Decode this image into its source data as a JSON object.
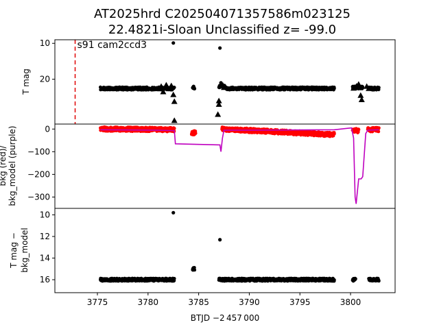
{
  "figure": {
    "title_line1": "AT2025hrd  C202504071357586m023125",
    "title_line2": "22.4821i-Sloan Unclassified z= -99.0"
  },
  "chart_data": [
    {
      "type": "scatter",
      "panel": "top",
      "ylabel": "T mag",
      "ylim": [
        32.5,
        9.0
      ],
      "yinverted": true,
      "yticks": [
        10,
        20
      ],
      "xlim": [
        3770.8,
        3804.4
      ],
      "annotation": {
        "text": "s91 cam2ccd3",
        "x": 3772.8
      },
      "sector_line_x": 3772.8,
      "series": [
        {
          "marker": "dot",
          "color": "#000000",
          "segments": [
            {
              "x0": 3775.3,
              "x1": 3781.2,
              "y": 22.6
            },
            {
              "x0": 3781.3,
              "x1": 3782.6,
              "y": 22.6
            },
            {
              "x0": 3784.4,
              "x1": 3784.6,
              "y": 22.3
            },
            {
              "x0": 3787.0,
              "x1": 3787.6,
              "y": 22.1
            },
            {
              "x0": 3787.7,
              "x1": 3798.4,
              "y": 22.6
            },
            {
              "x0": 3800.2,
              "x1": 3801.2,
              "y": 22.3
            },
            {
              "x0": 3801.8,
              "x1": 3802.8,
              "y": 22.6
            }
          ],
          "points": [
            {
              "x": 3782.5,
              "y": 9.9
            },
            {
              "x": 3787.1,
              "y": 11.3
            },
            {
              "x": 3784.5,
              "y": 22.0
            },
            {
              "x": 3787.2,
              "y": 21.0
            }
          ]
        },
        {
          "marker": "triangle",
          "color": "#000000",
          "points": [
            {
              "x": 3781.3,
              "y": 22.0
            },
            {
              "x": 3781.5,
              "y": 23.5
            },
            {
              "x": 3781.8,
              "y": 21.6
            },
            {
              "x": 3782.3,
              "y": 21.8
            },
            {
              "x": 3782.5,
              "y": 24.3
            },
            {
              "x": 3782.6,
              "y": 26.2
            },
            {
              "x": 3782.6,
              "y": 31.5
            },
            {
              "x": 3787.0,
              "y": 26.0
            },
            {
              "x": 3787.0,
              "y": 27.0
            },
            {
              "x": 3786.9,
              "y": 29.8
            },
            {
              "x": 3787.4,
              "y": 21.7
            },
            {
              "x": 3787.5,
              "y": 22.3
            },
            {
              "x": 3800.3,
              "y": 22.5
            },
            {
              "x": 3800.6,
              "y": 21.9
            },
            {
              "x": 3800.8,
              "y": 21.4
            },
            {
              "x": 3801.0,
              "y": 24.5
            },
            {
              "x": 3801.1,
              "y": 25.7
            },
            {
              "x": 3801.6,
              "y": 22.0
            },
            {
              "x": 3801.8,
              "y": 22.6
            }
          ]
        }
      ]
    },
    {
      "type": "line",
      "panel": "middle",
      "ylabel": "bkg (red)/\nbkg_model (purple)",
      "ylim": [
        -350,
        22
      ],
      "yticks": [
        0,
        -100,
        -200,
        -300
      ],
      "xlim": [
        3770.8,
        3804.4
      ],
      "series": [
        {
          "name": "bkg",
          "color": "#ff0000",
          "marker": "dot",
          "segments": [
            {
              "x0": 3775.3,
              "x1": 3781.0,
              "y0": 0,
              "y1": -2
            },
            {
              "x0": 3781.0,
              "x1": 3782.6,
              "y0": -2,
              "y1": -3
            },
            {
              "x0": 3784.3,
              "x1": 3784.7,
              "y0": -15,
              "y1": -18
            },
            {
              "x0": 3787.3,
              "x1": 3798.4,
              "y0": 0,
              "y1": -25
            },
            {
              "x0": 3800.2,
              "x1": 3800.8,
              "y0": -5,
              "y1": -8
            },
            {
              "x0": 3801.7,
              "x1": 3802.8,
              "y0": -3,
              "y1": -2
            }
          ]
        },
        {
          "name": "bkg_model",
          "color": "#bf00bf",
          "x": [
            3775.3,
            3781.0,
            3782.6,
            3782.7,
            3787.1,
            3787.2,
            3787.35,
            3787.5,
            3790,
            3795,
            3798.4,
            3800.1,
            3800.3,
            3800.45,
            3800.55,
            3800.8,
            3801.05,
            3801.2,
            3801.5,
            3801.7,
            3802.8
          ],
          "y": [
            -3,
            -5,
            -7,
            -65,
            -70,
            -100,
            -40,
            -5,
            -5,
            -4,
            -3,
            5,
            -40,
            -300,
            -330,
            -220,
            -220,
            -210,
            -20,
            -5,
            -3
          ]
        }
      ]
    },
    {
      "type": "scatter",
      "panel": "bottom",
      "ylabel": "T mag −\nbkg_model",
      "ylim": [
        17.2,
        9.4
      ],
      "yinverted": true,
      "yticks": [
        10,
        12,
        14,
        16
      ],
      "xlim": [
        3770.8,
        3804.4
      ],
      "xlabel": "BTJD −2 457 000",
      "xticks": [
        3775,
        3780,
        3785,
        3790,
        3795,
        3800
      ],
      "series": [
        {
          "marker": "dot",
          "color": "#000000",
          "segments": [
            {
              "x0": 3775.3,
              "x1": 3782.6,
              "y": 16.0
            },
            {
              "x0": 3784.4,
              "x1": 3784.6,
              "y": 15.0
            },
            {
              "x0": 3787.0,
              "x1": 3787.6,
              "y": 16.0
            },
            {
              "x0": 3787.7,
              "x1": 3798.4,
              "y": 16.0
            },
            {
              "x0": 3800.2,
              "x1": 3800.5,
              "y": 16.0
            },
            {
              "x0": 3801.8,
              "x1": 3802.8,
              "y": 16.0
            }
          ],
          "points": [
            {
              "x": 3782.5,
              "y": 9.8
            },
            {
              "x": 3787.1,
              "y": 12.3
            }
          ]
        }
      ]
    }
  ]
}
